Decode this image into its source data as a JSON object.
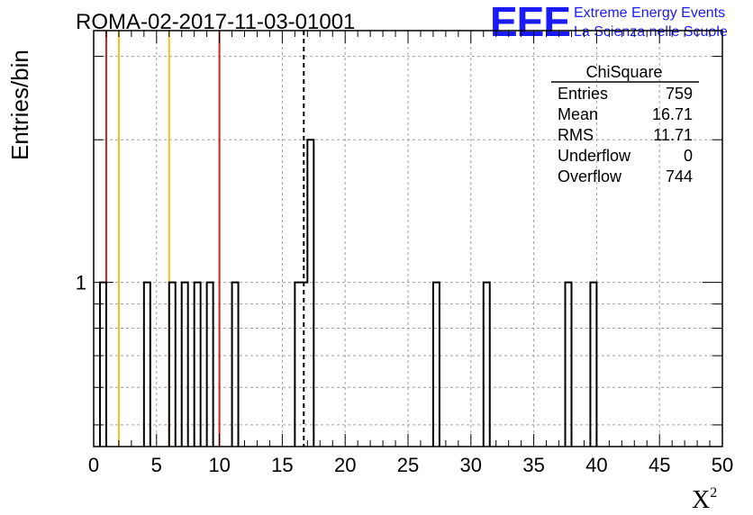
{
  "chart_data": {
    "type": "bar",
    "title": "ROMA-02-2017-11-03-01001",
    "xlabel": "X",
    "xlabel_sup": "2",
    "ylabel": "Entries/bin",
    "xlim": [
      0,
      50
    ],
    "ylim_log": [
      0.45,
      3.4
    ],
    "log_y": true,
    "grid": true,
    "bin_width": 0.5,
    "x_ticks": [
      0,
      5,
      10,
      15,
      20,
      25,
      30,
      35,
      40,
      45,
      50
    ],
    "y_tick_labels": [
      {
        "value": 1,
        "label": "1"
      }
    ],
    "bins": [
      {
        "x": 0.5,
        "value": 1
      },
      {
        "x": 4.0,
        "value": 1
      },
      {
        "x": 6.0,
        "value": 1
      },
      {
        "x": 7.0,
        "value": 1
      },
      {
        "x": 8.0,
        "value": 1
      },
      {
        "x": 9.0,
        "value": 1
      },
      {
        "x": 11.0,
        "value": 1
      },
      {
        "x": 16.0,
        "value": 1
      },
      {
        "x": 16.5,
        "value": 1
      },
      {
        "x": 17.0,
        "value": 2
      },
      {
        "x": 27.0,
        "value": 1
      },
      {
        "x": 31.0,
        "value": 1
      },
      {
        "x": 37.5,
        "value": 1
      },
      {
        "x": 39.5,
        "value": 1
      }
    ],
    "vertical_lines": [
      {
        "x": 1.0,
        "color": "#d42020",
        "style": "solid"
      },
      {
        "x": 2.0,
        "color": "#f0c020",
        "style": "solid"
      },
      {
        "x": 6.0,
        "color": "#f0c020",
        "style": "solid"
      },
      {
        "x": 10.0,
        "color": "#d42020",
        "style": "solid"
      },
      {
        "x": 16.71,
        "color": "#000000",
        "style": "dashed"
      }
    ],
    "stats": {
      "name": "ChiSquare",
      "rows": [
        {
          "label": "Entries",
          "value": "759"
        },
        {
          "label": "Mean",
          "value": "16.71"
        },
        {
          "label": "RMS",
          "value": "11.71"
        },
        {
          "label": "Underflow",
          "value": "0"
        },
        {
          "label": "Overflow",
          "value": "744"
        }
      ]
    }
  },
  "logo": {
    "mark": "EEE",
    "line1": "Extreme Energy Events",
    "line2": "La Scienza nelle Scuole",
    "color": "#1a1aff"
  }
}
